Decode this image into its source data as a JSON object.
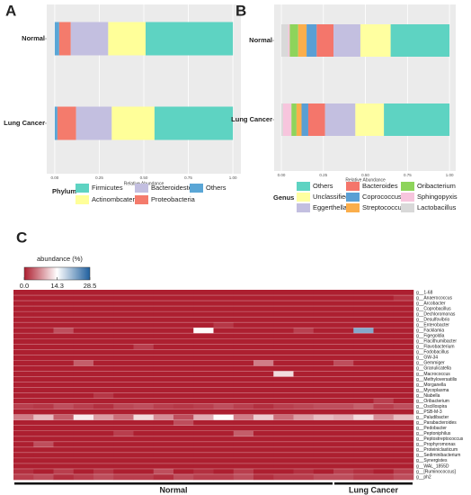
{
  "chart_data": [
    {
      "type": "stacked_bar",
      "panel": "A",
      "categories": [
        "Normal",
        "Lung Cancer"
      ],
      "series": [
        {
          "name": "Others",
          "color": "#5aa6d6",
          "values": [
            0.025,
            0.015
          ]
        },
        {
          "name": "Proteobacteria",
          "color": "#f47b6c",
          "values": [
            0.065,
            0.105
          ]
        },
        {
          "name": "Bacteroidestes",
          "color": "#c3bfe0",
          "values": [
            0.21,
            0.2
          ]
        },
        {
          "name": "Actinombcateria",
          "color": "#ffff99",
          "values": [
            0.21,
            0.24
          ]
        },
        {
          "name": "Firmicutes",
          "color": "#5ed3c2",
          "values": [
            0.49,
            0.44
          ]
        }
      ],
      "xlim": [
        -0.045,
        1.045
      ],
      "xticks": [
        {
          "value": 0,
          "label": "0.00"
        },
        {
          "value": 0.25,
          "label": "0.25"
        },
        {
          "value": 0.5,
          "label": "0.50"
        },
        {
          "value": 0.75,
          "label": "0.75"
        },
        {
          "value": 1,
          "label": "1.00"
        }
      ],
      "xlabel": "Relative Abundance",
      "legend_title": "Phylum",
      "grid": true
    },
    {
      "type": "stacked_bar",
      "panel": "B",
      "categories": [
        "Normal",
        "Lung Cancer"
      ],
      "series": [
        {
          "name": "Lactobacillus",
          "color": "#d9d9d9",
          "values": [
            0.04,
            0.01
          ]
        },
        {
          "name": "Sphingopyxis",
          "color": "#f7c5dd",
          "values": [
            0.01,
            0.05
          ]
        },
        {
          "name": "Oribacterium",
          "color": "#8ed45b",
          "values": [
            0.05,
            0.03
          ]
        },
        {
          "name": "Streptococcus",
          "color": "#fbae4b",
          "values": [
            0.05,
            0.03
          ]
        },
        {
          "name": "Coprococcus",
          "color": "#5a9fd4",
          "values": [
            0.06,
            0.04
          ]
        },
        {
          "name": "Bacteroides",
          "color": "#f4766b",
          "values": [
            0.1,
            0.1
          ]
        },
        {
          "name": "Eggerthella",
          "color": "#c3bfe0",
          "values": [
            0.16,
            0.18
          ]
        },
        {
          "name": "Unclassified",
          "color": "#ffffa0",
          "values": [
            0.18,
            0.17
          ]
        },
        {
          "name": "Others",
          "color": "#5ed3c2",
          "values": [
            0.35,
            0.39
          ]
        }
      ],
      "xlim": [
        -0.043,
        1.037
      ],
      "xticks": [
        {
          "value": 0,
          "label": "0.00"
        },
        {
          "value": 0.25,
          "label": "0.25"
        },
        {
          "value": 0.5,
          "label": "0.50"
        },
        {
          "value": 0.75,
          "label": "0.75"
        },
        {
          "value": 1,
          "label": "1.00"
        }
      ],
      "xlabel": "Relative Abundance",
      "legend_title": "Genus",
      "grid": true
    },
    {
      "type": "heatmap",
      "panel": "C",
      "rows": [
        "g__1-68",
        "g__Anaerococcus",
        "g__Arcobacter",
        "g__Coprobacillus",
        "g__Dechloromonas",
        "g__Desulfovibrio",
        "g__Enterobacter",
        "g__Facklamia",
        "g__Figegoldia",
        "g__Flacithumibacter",
        "g__Flavobacterium",
        "g__Fodobacillus",
        "g__GW-34",
        "g__Gemmiger",
        "g__Granulicatella",
        "g__Macrococcus",
        "g__Methyloversatilis",
        "g__Morganella",
        "g__Mycoplasma",
        "g__Niabella",
        "g__Oribacterium",
        "g__Oscillospira",
        "g__PSB-M-3",
        "g__Paludibacter",
        "g__Parabacteroides",
        "g__Pedobacter",
        "g__Peptoniphilus",
        "g__Peptostreptococcus",
        "g__Prophyromonas",
        "g__Proteiniclasticum",
        "g__Sediminibacterium",
        "g__Synergistes",
        "g__WAL_1855D",
        "g__[Ruminococcus]",
        "g__ph2"
      ],
      "groups": [
        {
          "name": "Normal",
          "values": [
            [
              0,
              0,
              0,
              0,
              0,
              0,
              0,
              0,
              0,
              0,
              0,
              0,
              0,
              0,
              0,
              0
            ],
            [
              0,
              0,
              0,
              0,
              0,
              0,
              0,
              0,
              0,
              0,
              0,
              0,
              0,
              0,
              0,
              0
            ],
            [
              0,
              0,
              0,
              0,
              0,
              0,
              0,
              0,
              0,
              0,
              0,
              0,
              0,
              0,
              0,
              0
            ],
            [
              0,
              0,
              0,
              0,
              0,
              0,
              0,
              0,
              0,
              0,
              0,
              0,
              0,
              0,
              0,
              0
            ],
            [
              0,
              0,
              0,
              0,
              0,
              0,
              0,
              0,
              0,
              0,
              0,
              0,
              0,
              0,
              0,
              0
            ],
            [
              0,
              0,
              0,
              0,
              0,
              0,
              0,
              0,
              0,
              0,
              0,
              0,
              0,
              0,
              0,
              0
            ],
            [
              0,
              0,
              0,
              0,
              0,
              0,
              0,
              0,
              0,
              0,
              1.5,
              0,
              0,
              0,
              0,
              0
            ],
            [
              0,
              0,
              3,
              0,
              0,
              0,
              0,
              0,
              0,
              14,
              0,
              0,
              0,
              0,
              2,
              0
            ],
            [
              0,
              0,
              0,
              0,
              0,
              0,
              0,
              0,
              0,
              0,
              0,
              0,
              0,
              0,
              0,
              0
            ],
            [
              0,
              0,
              0,
              0,
              0,
              0,
              0,
              0,
              0,
              0,
              0,
              0,
              0,
              0,
              0,
              0
            ],
            [
              0,
              0,
              0,
              0,
              0,
              0,
              2,
              0,
              0,
              0,
              0,
              0,
              0,
              0,
              0,
              0
            ],
            [
              0,
              0,
              0,
              0,
              0,
              0,
              0,
              0,
              0,
              0,
              0,
              0,
              0,
              0,
              0,
              0
            ],
            [
              0,
              0,
              0,
              0,
              0,
              0,
              0,
              0,
              0,
              0,
              0,
              0,
              0,
              0,
              0,
              0
            ],
            [
              0,
              0,
              0,
              4,
              0,
              0,
              0,
              0,
              0,
              0,
              0,
              0,
              6,
              0,
              0,
              0
            ],
            [
              0,
              0,
              0,
              0,
              0,
              0,
              0,
              0,
              0,
              0,
              0,
              0,
              0,
              0,
              0,
              0
            ],
            [
              0,
              0,
              0,
              0,
              0,
              0,
              0,
              0,
              0,
              0,
              0,
              0,
              0,
              12,
              0,
              0
            ],
            [
              0,
              0,
              0,
              0,
              0,
              0,
              0,
              0,
              0,
              0,
              0,
              0,
              0,
              0,
              0,
              0
            ],
            [
              0,
              0,
              0,
              0,
              0,
              0,
              0,
              0,
              0,
              0,
              0,
              0,
              0,
              0,
              0,
              0
            ],
            [
              0,
              0,
              0,
              0,
              0,
              0,
              0,
              0,
              0,
              0,
              0,
              0,
              0,
              0,
              0,
              0
            ],
            [
              0,
              0,
              0,
              0,
              1.5,
              0,
              0,
              0,
              0,
              0,
              0,
              0,
              0,
              0,
              0,
              0
            ],
            [
              0,
              0,
              0,
              0,
              0,
              0,
              0,
              0,
              0,
              0,
              0,
              0,
              0,
              0,
              0,
              0
            ],
            [
              2,
              1.5,
              3,
              2,
              1,
              2.5,
              3,
              2,
              1.5,
              2,
              3,
              2,
              1,
              2,
              2.5,
              3
            ],
            [
              0,
              0,
              0,
              0,
              0,
              0,
              0,
              0,
              0,
              0,
              0,
              0,
              0,
              0,
              0,
              0
            ],
            [
              6,
              10,
              4,
              13,
              8,
              5,
              12,
              7,
              3,
              9,
              14,
              6,
              11,
              5,
              8,
              10
            ],
            [
              0,
              0,
              0,
              0,
              0,
              0,
              0,
              0,
              3,
              0,
              0,
              0,
              0,
              0,
              0,
              0
            ],
            [
              0,
              0,
              0,
              0,
              0,
              0,
              0,
              0,
              0,
              0,
              0,
              0,
              0,
              0,
              0,
              0
            ],
            [
              0,
              0,
              0,
              0,
              0,
              2,
              0,
              0,
              0,
              0,
              0,
              4,
              0,
              0,
              0,
              0
            ],
            [
              0,
              0,
              0,
              0,
              0,
              0,
              0,
              0,
              0,
              0,
              0,
              0,
              0,
              0,
              0,
              0
            ],
            [
              0,
              3,
              0,
              0,
              0,
              0,
              0,
              0,
              0,
              0,
              0,
              0,
              0,
              0,
              0,
              0
            ],
            [
              0,
              0,
              0,
              0,
              0,
              0,
              0,
              0,
              0,
              0,
              0,
              0,
              0,
              0,
              0,
              0
            ],
            [
              0,
              0,
              0,
              0,
              0,
              0,
              0,
              0,
              0,
              0,
              0,
              0,
              0,
              0,
              0,
              0
            ],
            [
              0,
              0,
              0,
              0,
              0,
              0,
              0,
              0,
              0,
              0,
              0,
              0,
              0,
              0,
              0,
              0
            ],
            [
              0,
              0,
              0,
              0,
              0,
              0,
              0,
              0,
              0,
              0,
              0,
              0,
              0,
              0,
              0,
              0
            ],
            [
              1,
              0,
              2,
              0,
              1.5,
              0,
              0,
              3,
              0,
              1,
              0,
              2,
              0,
              0,
              1,
              0
            ],
            [
              2,
              3,
              1,
              2,
              3,
              2,
              2,
              1,
              3,
              2,
              2,
              3,
              1,
              2,
              2,
              3
            ]
          ]
        },
        {
          "name": "Lung Cancer",
          "values": [
            [
              0,
              0,
              0,
              0
            ],
            [
              0,
              0,
              0,
              1.2
            ],
            [
              0,
              0,
              0,
              0
            ],
            [
              0,
              0,
              0,
              0
            ],
            [
              0,
              0,
              0,
              0
            ],
            [
              0,
              0,
              0,
              0
            ],
            [
              0,
              0,
              0,
              0
            ],
            [
              0,
              22,
              0,
              0
            ],
            [
              0,
              0,
              0,
              0
            ],
            [
              0,
              0,
              0,
              0
            ],
            [
              0,
              0,
              0,
              0
            ],
            [
              0,
              0,
              0,
              0
            ],
            [
              0,
              0,
              0,
              0
            ],
            [
              3,
              0,
              0,
              0
            ],
            [
              0,
              0,
              0,
              0
            ],
            [
              0,
              0,
              0,
              0
            ],
            [
              0,
              0,
              0,
              0
            ],
            [
              0,
              0,
              0,
              0
            ],
            [
              0,
              0,
              0,
              0
            ],
            [
              0,
              0,
              0,
              0
            ],
            [
              0,
              0,
              2,
              0
            ],
            [
              3,
              4,
              2,
              3
            ],
            [
              0,
              0,
              0,
              0
            ],
            [
              9,
              12,
              7,
              10
            ],
            [
              0,
              0,
              0,
              0
            ],
            [
              0,
              0,
              0,
              0
            ],
            [
              0,
              0,
              0,
              0
            ],
            [
              0,
              0,
              0,
              0
            ],
            [
              0,
              0,
              0,
              0
            ],
            [
              0,
              0,
              0,
              0
            ],
            [
              0,
              0,
              0,
              0
            ],
            [
              0,
              0,
              0,
              0
            ],
            [
              0,
              0,
              0,
              0
            ],
            [
              2,
              1,
              0,
              2
            ],
            [
              3,
              2,
              2,
              3
            ]
          ]
        }
      ],
      "colorbar": {
        "title": "abundance (%)",
        "lim": [
          0,
          28.5
        ],
        "ticks": [
          {
            "value": 0,
            "label": "0.0"
          },
          14.3,
          28.5
        ],
        "colors": [
          "#ad1f30",
          "#ffffff",
          "#1f5f9e"
        ]
      }
    }
  ]
}
